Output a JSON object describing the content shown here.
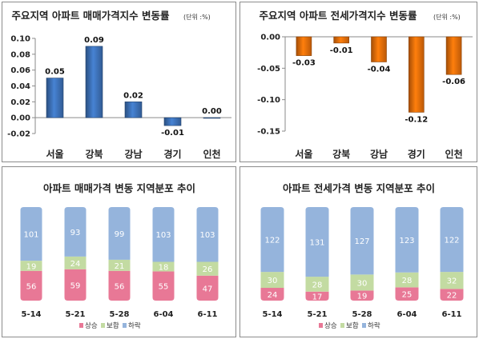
{
  "chart_data": [
    {
      "type": "bar",
      "title": "주요지역 아파트 매매가격지수 변동률",
      "unit": "(단위 :%)",
      "categories": [
        "서울",
        "강북",
        "강남",
        "경기",
        "인천"
      ],
      "values": [
        0.05,
        0.09,
        0.02,
        -0.01,
        0.0
      ],
      "value_labels": [
        "0.05",
        "0.09",
        "0.02",
        "-0.01",
        "0.00"
      ],
      "ylim": [
        -0.02,
        0.1
      ],
      "yticks": [
        "0.10",
        "0.08",
        "0.06",
        "0.04",
        "0.02",
        "0.00",
        "-0.02"
      ],
      "color": "#3c6fb4",
      "grid": false
    },
    {
      "type": "bar",
      "title": "주요지역 아파트 전세가격지수 변동률",
      "unit": "(단위 :%)",
      "categories": [
        "서울",
        "강북",
        "강남",
        "경기",
        "인천"
      ],
      "values": [
        -0.03,
        -0.01,
        -0.04,
        -0.12,
        -0.06
      ],
      "value_labels": [
        "-0.03",
        "-0.01",
        "-0.04",
        "-0.12",
        "-0.06"
      ],
      "ylim": [
        -0.15,
        0.0
      ],
      "yticks": [
        "0.00",
        "-0.05",
        "-0.10",
        "-0.15"
      ],
      "color": "#e46c0a",
      "grid": false
    },
    {
      "type": "bar",
      "stacked": true,
      "title": "아파트 매매가격 변동 지역분포 추이",
      "categories": [
        "5-14",
        "5-21",
        "5-28",
        "6-04",
        "6-11"
      ],
      "series": [
        {
          "name": "상승",
          "values": [
            56,
            59,
            56,
            55,
            47
          ],
          "labels": [
            "56",
            "59",
            "56",
            "55",
            "47"
          ],
          "color": "#e87896"
        },
        {
          "name": "보합",
          "values": [
            19,
            24,
            21,
            18,
            26
          ],
          "labels": [
            "19",
            "24",
            "21",
            "18",
            "26"
          ],
          "color": "#c3dba2"
        },
        {
          "name": "하락",
          "values": [
            101,
            93,
            99,
            103,
            103
          ],
          "labels": [
            "101",
            "93",
            "99",
            "103",
            "103"
          ],
          "color": "#95b4dc"
        }
      ],
      "legend_position": "bottom"
    },
    {
      "type": "bar",
      "stacked": true,
      "title": "아파트 전세가격 변동 지역분포 추이",
      "categories": [
        "5-14",
        "5-21",
        "5-28",
        "6-04",
        "6-11"
      ],
      "series": [
        {
          "name": "상승",
          "values": [
            24,
            17,
            19,
            25,
            22
          ],
          "labels": [
            "24",
            "17",
            "19",
            "25",
            "22"
          ],
          "color": "#e87896"
        },
        {
          "name": "보합",
          "values": [
            30,
            28,
            30,
            28,
            32
          ],
          "labels": [
            "30",
            "28",
            "30",
            "28",
            "32"
          ],
          "color": "#c3dba2"
        },
        {
          "name": "하락",
          "values": [
            122,
            131,
            127,
            123,
            122
          ],
          "labels": [
            "122",
            "131",
            "127",
            "123",
            "122"
          ],
          "color": "#95b4dc"
        }
      ],
      "legend_position": "bottom"
    }
  ]
}
